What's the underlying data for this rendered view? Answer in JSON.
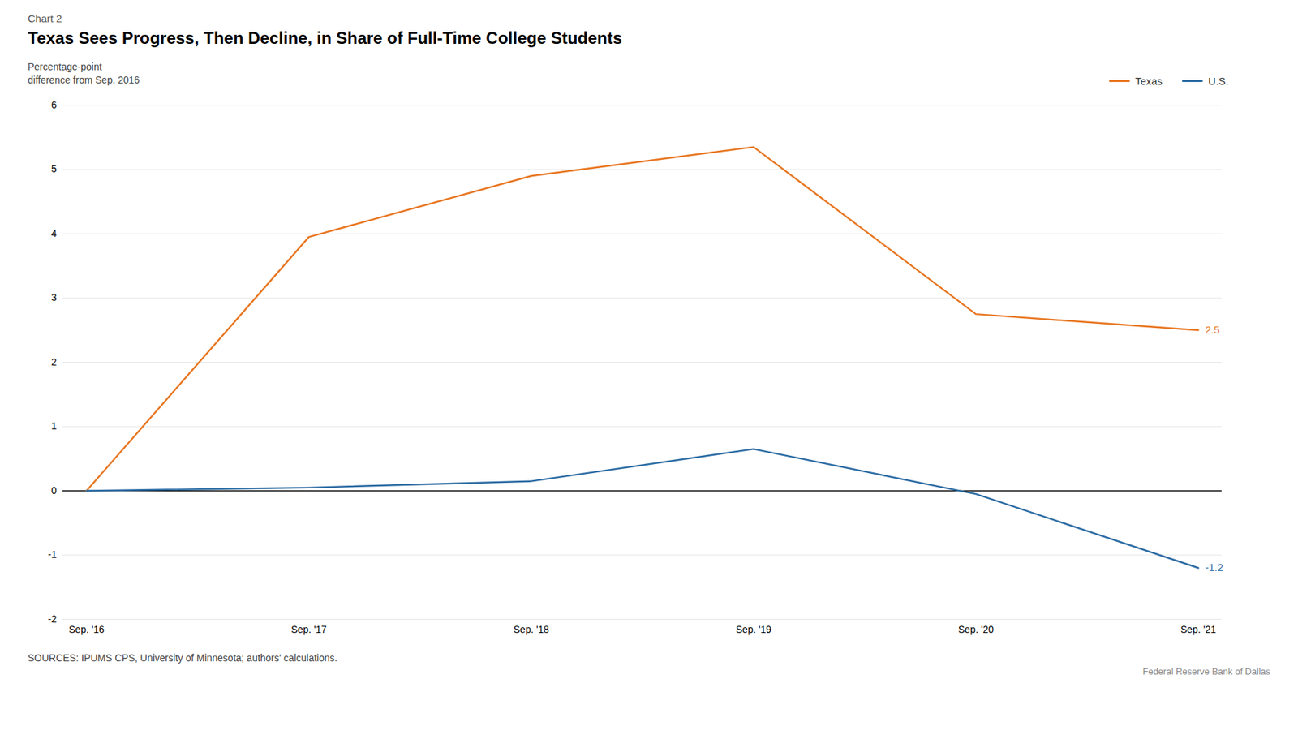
{
  "chart_data": {
    "type": "line",
    "chart_label": "Chart 2",
    "title": "Texas Sees Progress, Then Decline, in Share of Full-Time College Students",
    "ylabel": [
      "Percentage-point",
      "difference from Sep. 2016"
    ],
    "categories": [
      "Sep. '16",
      "Sep. '17",
      "Sep. '18",
      "Sep. '19",
      "Sep. '20",
      "Sep. '21"
    ],
    "series": [
      {
        "name": "Texas",
        "color": "#E87722",
        "values": [
          0.0,
          3.95,
          4.9,
          5.35,
          2.75,
          2.5
        ]
      },
      {
        "name": "U.S.",
        "color": "#2E6DA4",
        "values": [
          0.0,
          0.05,
          0.15,
          0.65,
          -0.05,
          -1.2
        ]
      }
    ],
    "ylim": [
      -2,
      6
    ],
    "yticks": [
      -2,
      -1,
      0,
      1,
      2,
      3,
      4,
      5,
      6
    ],
    "grid": true,
    "legend": "upper right",
    "annotations": [
      {
        "text": "2.5",
        "x": "Sep. '21",
        "y": 2.5,
        "color": "#E87722"
      },
      {
        "text": "-1.2",
        "x": "Sep. '21",
        "y": -1.2,
        "color": "#2E6DA4"
      }
    ],
    "caption": "SOURCES: IPUMS CPS, University of Minnesota; authors' calculations.",
    "attribution": "Federal Reserve Bank of Dallas"
  }
}
